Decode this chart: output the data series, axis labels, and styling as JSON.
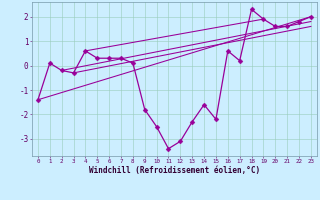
{
  "xlabel": "Windchill (Refroidissement éolien,°C)",
  "bg_color": "#cceeff",
  "line_color": "#990099",
  "marker": "D",
  "markersize": 2.5,
  "linewidth": 0.9,
  "x_hours": [
    0,
    1,
    2,
    3,
    4,
    5,
    6,
    7,
    8,
    9,
    10,
    11,
    12,
    13,
    14,
    15,
    16,
    17,
    18,
    19,
    20,
    21,
    22,
    23
  ],
  "y_windchill": [
    -1.4,
    0.1,
    -0.2,
    -0.3,
    0.6,
    0.3,
    0.3,
    0.3,
    0.1,
    -1.8,
    -2.5,
    -3.4,
    -3.1,
    -2.3,
    -1.6,
    -2.2,
    0.6,
    0.2,
    2.3,
    1.9,
    1.6,
    1.6,
    1.8,
    2.0
  ],
  "extra_lines": [
    {
      "x": [
        0,
        23
      ],
      "y": [
        -1.4,
        2.0
      ]
    },
    {
      "x": [
        2,
        23
      ],
      "y": [
        -0.2,
        1.8
      ]
    },
    {
      "x": [
        3,
        23
      ],
      "y": [
        -0.3,
        1.6
      ]
    },
    {
      "x": [
        4,
        19
      ],
      "y": [
        0.6,
        1.9
      ]
    }
  ],
  "ylim": [
    -3.7,
    2.6
  ],
  "xlim": [
    -0.5,
    23.5
  ],
  "yticks": [
    -3,
    -2,
    -1,
    0,
    1,
    2
  ],
  "xtick_labels": [
    "0",
    "1",
    "2",
    "3",
    "4",
    "5",
    "6",
    "7",
    "8",
    "9",
    "10",
    "11",
    "12",
    "13",
    "14",
    "15",
    "16",
    "17",
    "18",
    "19",
    "20",
    "21",
    "22",
    "23"
  ],
  "grid_color": "#99ccbb",
  "spine_color": "#7799aa"
}
